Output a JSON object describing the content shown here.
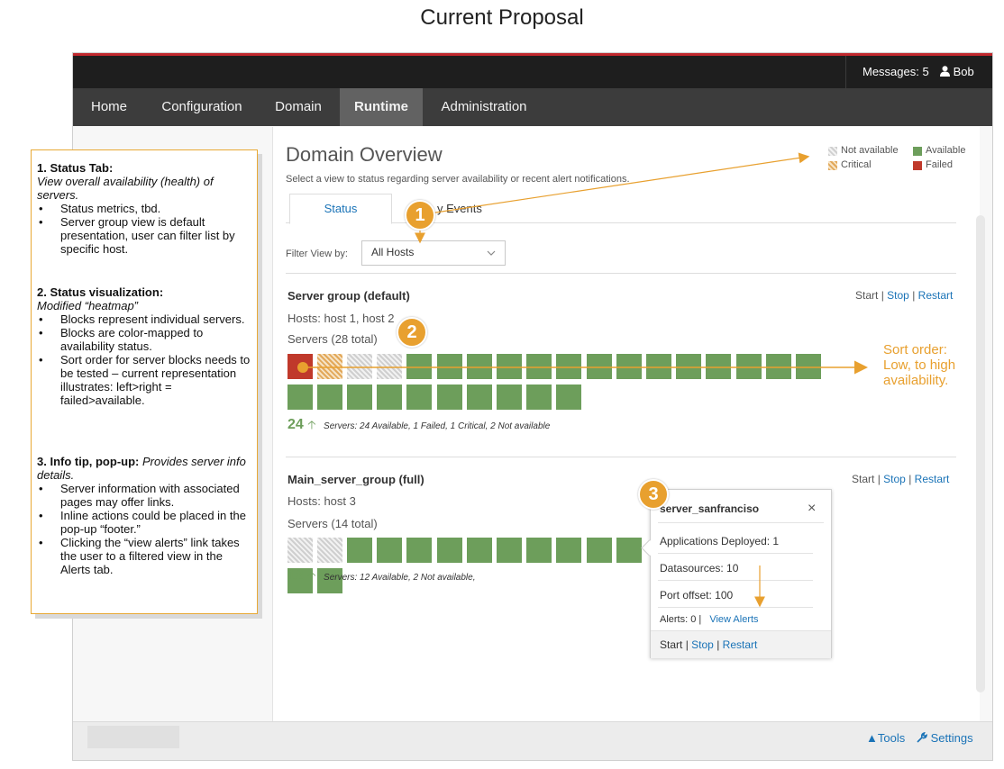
{
  "page_title": "Current Proposal",
  "colors": {
    "accent": "#1a73b7",
    "available": "#6d9e5b",
    "failed": "#c0392b",
    "critical": "#e2a85a",
    "not_available": "#cfcfcf",
    "annotation": "#e8a02f"
  },
  "topbar": {
    "messages": "Messages: 5",
    "user": "Bob",
    "user_icon": "user-icon"
  },
  "nav": {
    "items": [
      "Home",
      "Configuration",
      "Domain",
      "Runtime",
      "Administration"
    ],
    "active": "Runtime"
  },
  "overview": {
    "title": "Domain Overview",
    "subtitle": "Select a view to status regarding server availability or recent alert notifications.",
    "legend": {
      "not_available": "Not available",
      "available": "Available",
      "critical": "Critical",
      "failed": "Failed"
    },
    "tabs": [
      "Status",
      "Activity Events"
    ],
    "tabs_visible": [
      "Status",
      "y Events"
    ],
    "filter_label": "Filter View by:",
    "filter_value": "All Hosts"
  },
  "groups": [
    {
      "name": "Server group (default)",
      "hosts": "Hosts: host 1, host 2",
      "servers_total": "Servers (28 total)",
      "counts": {
        "failed": 1,
        "critical": 1,
        "not_available": 2,
        "available": 24
      },
      "up_count": "24",
      "summary": "Servers: 24 Available, 1 Failed, 1 Critical, 2  Not available",
      "actions": {
        "start": "Start",
        "sep": "|",
        "stop": "Stop",
        "restart": "Restart"
      }
    },
    {
      "name": "Main_server_group (full)",
      "hosts": "Hosts: host 3",
      "servers_total": "Servers (14 total)",
      "counts": {
        "failed": 0,
        "critical": 0,
        "not_available": 2,
        "available": 12
      },
      "up_count": "12",
      "summary": "Servers: 12 Available, 2 Not available,",
      "actions": {
        "start": "Start",
        "sep": "|",
        "stop": "Stop",
        "restart": "Restart"
      }
    }
  ],
  "popup": {
    "title": "server_sanfranciso",
    "close": "×",
    "apps": "Applications Deployed: 1",
    "datasources": "Datasources: 10",
    "port": "Port offset: 100",
    "alerts": "Alerts:  0 |",
    "view_alerts": "View Alerts",
    "actions": {
      "start": "Start",
      "sep": "|",
      "stop": "Stop",
      "restart": "Restart"
    }
  },
  "footer": {
    "tools": "▲Tools",
    "settings": "Settings",
    "settings_icon": "wrench-icon"
  },
  "annotations": {
    "s1_title": "1. Status Tab:",
    "s1_desc": "View overall availability (health) of servers.",
    "s1_items": [
      "Status metrics, tbd.",
      "Server group view is default presentation, user can filter list by specific host."
    ],
    "s2_title": "2. Status visualization:",
    "s2_desc": "Modified “heatmap”",
    "s2_items": [
      "Blocks represent individual servers.",
      "Blocks are color-mapped to availability status.",
      "Sort order for server blocks needs to be tested – current representation illustrates: left>right = failed>available."
    ],
    "s3_title": "3. Info tip, pop-up:",
    "s3_desc": "Provides server info details.",
    "s3_items": [
      "Server information with associated pages may offer links.",
      "Inline actions could be placed in the pop-up “footer.”",
      "Clicking the “view alerts” link takes the user to a filtered view in the Alerts tab."
    ],
    "badges": [
      "1",
      "2",
      "3"
    ],
    "sort_note": [
      "Sort order:",
      "Low, to high",
      "availability."
    ]
  }
}
